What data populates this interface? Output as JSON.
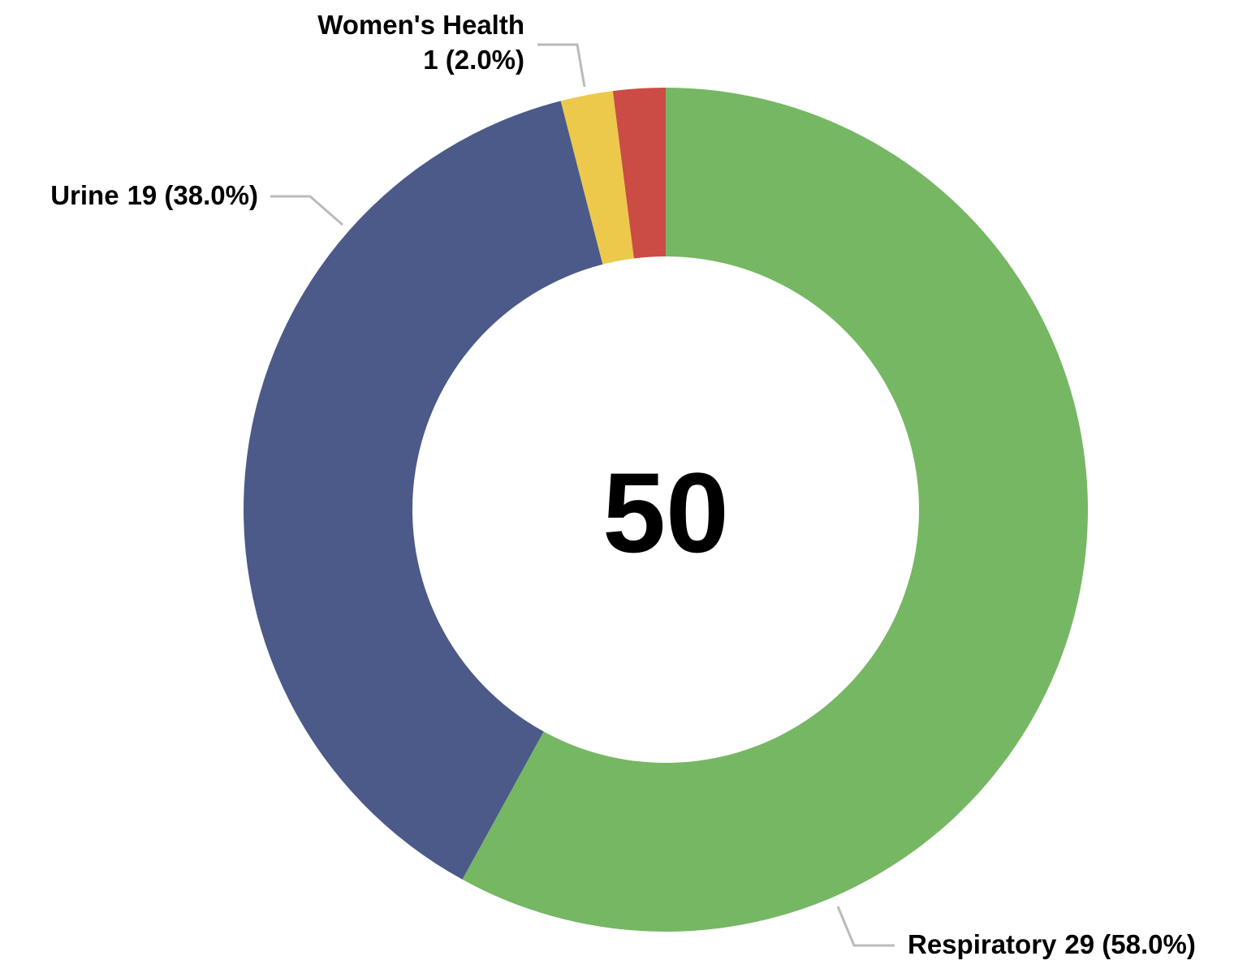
{
  "chart_data": {
    "type": "donut",
    "categories": [
      "Respiratory",
      "Urine",
      "Women's Health",
      null
    ],
    "values": [
      29,
      19,
      1,
      1
    ],
    "value_labels": [
      "29 (58.0%)",
      "19 (38.0%)",
      "1 (2.0%)",
      null
    ],
    "colors": [
      "#76b763",
      "#4b5a89",
      "#ecc94b",
      "#cb4c45"
    ],
    "total": 50
  }
}
